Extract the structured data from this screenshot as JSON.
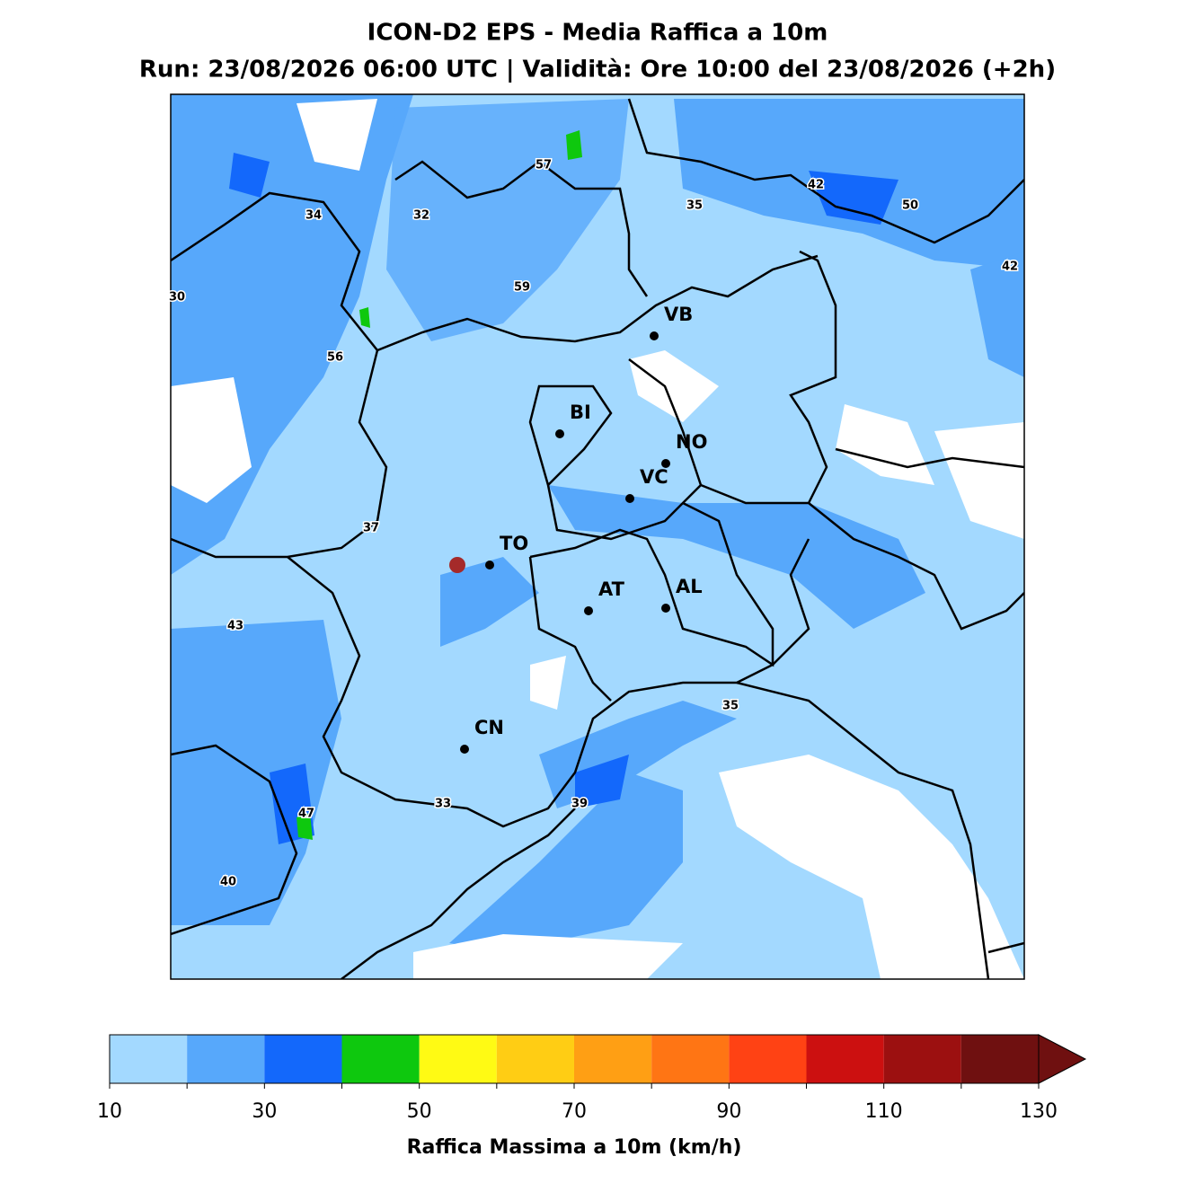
{
  "title": "ICON-D2 EPS - Media Raffica a 10m",
  "subtitle": "Run: 23/08/2026 06:00 UTC | Validità: Ore 10:00 del 23/08/2026 (+2h)",
  "cities": [
    "VB",
    "BI",
    "NO",
    "VC",
    "TO",
    "AT",
    "AL",
    "CN"
  ],
  "contour_labels": [
    57,
    42,
    35,
    50,
    34,
    32,
    42,
    30,
    59,
    56,
    37,
    43,
    35,
    33,
    39,
    47,
    40
  ],
  "colorbar": {
    "levels": [
      10,
      20,
      30,
      40,
      50,
      60,
      70,
      80,
      90,
      100,
      110,
      120,
      130
    ],
    "colors": [
      "#a3d9ff",
      "#57a8fb",
      "#1368fb",
      "#0ec80e",
      "#fffa14",
      "#ffcd14",
      "#ff9f14",
      "#ff7514",
      "#ff4214",
      "#cc1010",
      "#9c1010",
      "#6f1010"
    ],
    "extend_color": "#6f1010",
    "ticks": [
      10,
      30,
      50,
      70,
      90,
      110,
      130
    ],
    "label": "Raffica Massima a 10m (km/h)"
  }
}
